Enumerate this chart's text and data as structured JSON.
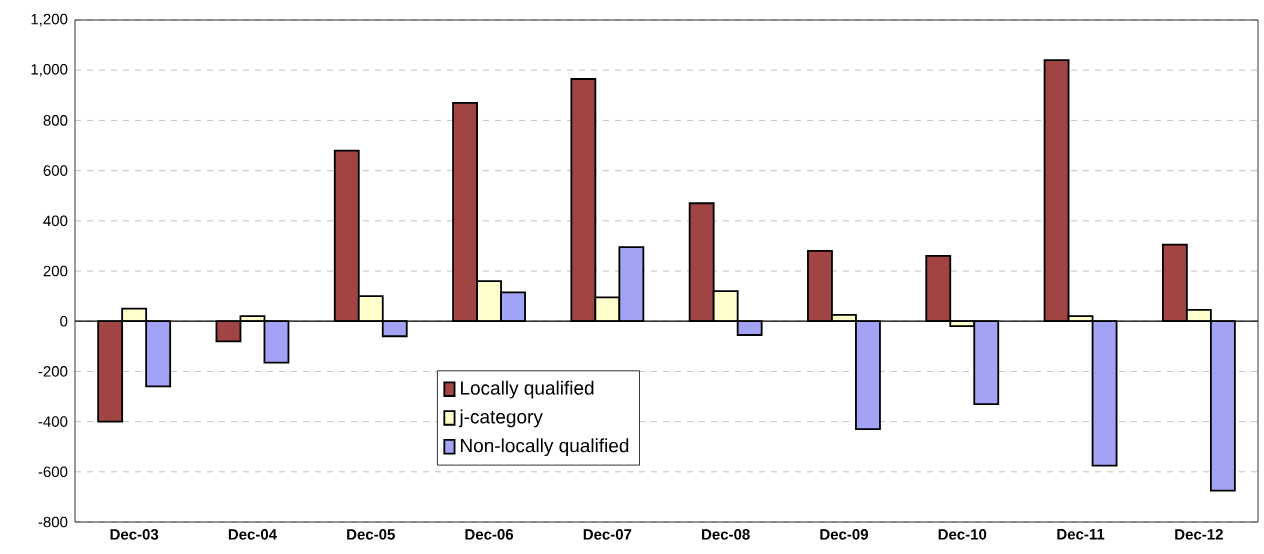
{
  "chart_data": {
    "type": "bar",
    "categories": [
      "Dec-03",
      "Dec-04",
      "Dec-05",
      "Dec-06",
      "Dec-07",
      "Dec-08",
      "Dec-09",
      "Dec-10",
      "Dec-11",
      "Dec-12"
    ],
    "series": [
      {
        "name": "Locally qualified",
        "color": "#a04444",
        "values": [
          -400,
          -80,
          680,
          870,
          965,
          470,
          280,
          260,
          1040,
          305
        ]
      },
      {
        "name": "j-category",
        "color": "#ffffcc",
        "values": [
          50,
          20,
          100,
          160,
          95,
          120,
          25,
          -20,
          20,
          45
        ]
      },
      {
        "name": "Non-locally qualified",
        "color": "#a3a3f5",
        "values": [
          -260,
          -165,
          -60,
          115,
          295,
          -55,
          -430,
          -330,
          -575,
          -675
        ]
      }
    ],
    "ylim": [
      -800,
      1200
    ],
    "yticks": [
      -800,
      -600,
      -400,
      -200,
      0,
      200,
      400,
      600,
      800,
      {
        "value": 1000,
        "label": "1,000"
      },
      {
        "value": 1200,
        "label": "1,200"
      }
    ],
    "grid": "y",
    "legend": "bottom"
  }
}
